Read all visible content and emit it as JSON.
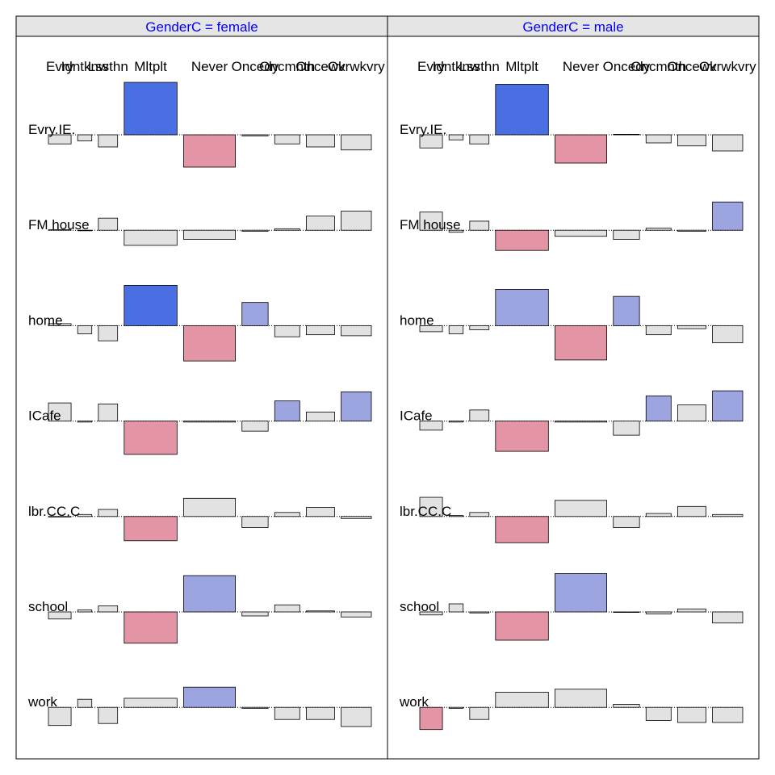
{
  "chart_data": {
    "type": "association-plot",
    "facet_variable": "GenderC",
    "facet_separator": " = ",
    "panels": [
      {
        "level": "female",
        "rows": [
          {
            "name": "Evry.IE.",
            "residuals": [
              -0.9,
              -0.6,
              -1.2,
              5.2,
              -3.2,
              -0.1,
              -0.9,
              -1.2,
              -1.5
            ]
          },
          {
            "name": "FM house",
            "residuals": [
              0.05,
              -0.05,
              1.2,
              -1.5,
              -0.9,
              -0.1,
              0.15,
              1.4,
              1.9
            ]
          },
          {
            "name": "home",
            "residuals": [
              0.2,
              -0.8,
              -1.5,
              4.0,
              -3.5,
              2.3,
              -1.1,
              -0.9,
              -1.0
            ]
          },
          {
            "name": "ICafe",
            "residuals": [
              1.8,
              -0.1,
              1.7,
              -3.3,
              -0.1,
              -1.0,
              2.0,
              0.9,
              2.9
            ]
          },
          {
            "name": "lbr.CC.C",
            "residuals": [
              0.0,
              0.2,
              0.7,
              -2.4,
              1.8,
              -1.1,
              0.4,
              0.9,
              -0.2
            ]
          },
          {
            "name": "school",
            "residuals": [
              -0.7,
              0.2,
              0.6,
              -3.1,
              3.6,
              -0.4,
              0.7,
              0.1,
              -0.5
            ]
          },
          {
            "name": "work",
            "residuals": [
              -1.8,
              0.8,
              -1.6,
              0.9,
              2.0,
              -0.1,
              -1.2,
              -1.2,
              -1.9
            ]
          }
        ]
      },
      {
        "level": "male",
        "rows": [
          {
            "name": "Evry.IE.",
            "residuals": [
              -1.3,
              -0.5,
              -0.9,
              5.0,
              -2.8,
              0.05,
              -0.8,
              -1.1,
              -1.6
            ]
          },
          {
            "name": "FM house",
            "residuals": [
              1.8,
              -0.2,
              0.9,
              -2.0,
              -0.6,
              -0.9,
              0.2,
              -0.1,
              2.8
            ]
          },
          {
            "name": "home",
            "residuals": [
              -0.6,
              -0.8,
              -0.4,
              3.6,
              -3.4,
              2.9,
              -0.9,
              -0.3,
              -1.7
            ]
          },
          {
            "name": "ICafe",
            "residuals": [
              -0.9,
              -0.1,
              1.1,
              -3.0,
              -0.1,
              -1.4,
              2.5,
              1.6,
              3.0
            ]
          },
          {
            "name": "lbr.CC.C",
            "residuals": [
              1.9,
              0.1,
              0.4,
              -2.6,
              1.6,
              -1.1,
              0.3,
              1.0,
              0.2
            ]
          },
          {
            "name": "school",
            "residuals": [
              -0.3,
              0.8,
              -0.1,
              -2.8,
              3.8,
              0.0,
              -0.2,
              0.3,
              -1.1
            ]
          },
          {
            "name": "work",
            "residuals": [
              -2.2,
              -0.1,
              -1.2,
              1.5,
              1.8,
              0.3,
              -1.3,
              -1.5,
              -1.5
            ]
          }
        ]
      }
    ],
    "columns": [
      {
        "label": "Evry",
        "expected": 0.9
      },
      {
        "label": "Idntknw",
        "expected": 0.35
      },
      {
        "label": "Lssthn",
        "expected": 0.65
      },
      {
        "label": "Mltplt",
        "expected": 4.9
      },
      {
        "label": "Never",
        "expected": 4.7
      },
      {
        "label": "Oncedy",
        "expected": 1.2
      },
      {
        "label": "Oncmnth",
        "expected": 1.1
      },
      {
        "label": "Oncewk",
        "expected": 1.4
      },
      {
        "label": "Ovrwkvry",
        "expected": 1.6
      }
    ],
    "header_labels": {
      "female": [
        "Evry",
        "Idntknw",
        "Lssthn",
        "Mltplt",
        "Never",
        "Oncedy",
        "Oncmnth",
        "Oncewk",
        "Ovrwkvry"
      ],
      "male": [
        "Evry",
        "Idntknw",
        "Lssthn",
        "Mltplt",
        "Never",
        "Oncedy",
        "Oncmnth",
        "Oncewk",
        "Ovrwkvry"
      ]
    },
    "shading_colors": {
      "positive_strong": "#4a6fe3",
      "positive_weak": "#9da5e0",
      "neutral": "#e2e2e2",
      "negative_weak": "#e495a5",
      "negative_strong": "#d33f6a"
    },
    "shading_thresholds": [
      2,
      4
    ]
  },
  "colors": {
    "strip_background": "#e5e5e5",
    "strip_text": "#0000ff",
    "panel_border": "#000000"
  }
}
